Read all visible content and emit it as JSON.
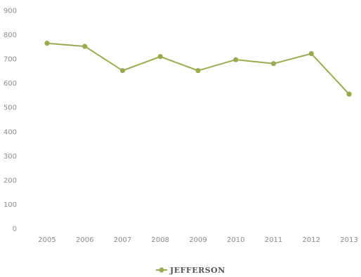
{
  "colors": {
    "series": "#9aaa4e",
    "tick_text": "#8a8a8a",
    "legend_text": "#555555"
  },
  "chart_data": {
    "type": "line",
    "title": "",
    "xlabel": "",
    "ylabel": "",
    "ylim": [
      0,
      900
    ],
    "y_ticks": [
      "0",
      "100",
      "200",
      "300",
      "400",
      "500",
      "600",
      "700",
      "800",
      "900"
    ],
    "grid": false,
    "legend_position": "bottom",
    "categories": [
      "2005",
      "2006",
      "2007",
      "2008",
      "2009",
      "2010",
      "2011",
      "2012",
      "2013"
    ],
    "series": [
      {
        "name": "JEFFERSON",
        "values": [
          765,
          752,
          652,
          710,
          652,
          697,
          681,
          722,
          555
        ]
      }
    ]
  }
}
